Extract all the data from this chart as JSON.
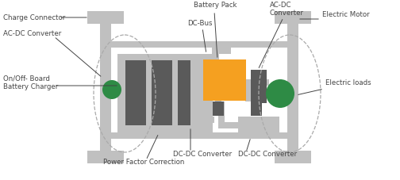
{
  "bg_color": "#ffffff",
  "light_gray": "#c0c0c0",
  "dark_gray": "#5a5a5a",
  "orange": "#F5A020",
  "green": "#2E8B45",
  "text_color": "#444444",
  "dashed_color": "#aaaaaa",
  "labels": {
    "charge_connector": "Charge Connector",
    "ac_dc_left": "AC-DC Converter",
    "on_off_board": "On/Off- Board\nBattery Charger",
    "battery_pack": "Battery Pack",
    "dc_bus": "DC-Bus",
    "ac_dc_right": "AC-DC\nConverter",
    "electric_motor": "Electric Motor",
    "electric_loads": "Electric loads",
    "dc_dc_center": "DC-DC Converter",
    "dc_dc_right": "DC-DC Converter",
    "power_factor": "Power Factor Correction"
  }
}
